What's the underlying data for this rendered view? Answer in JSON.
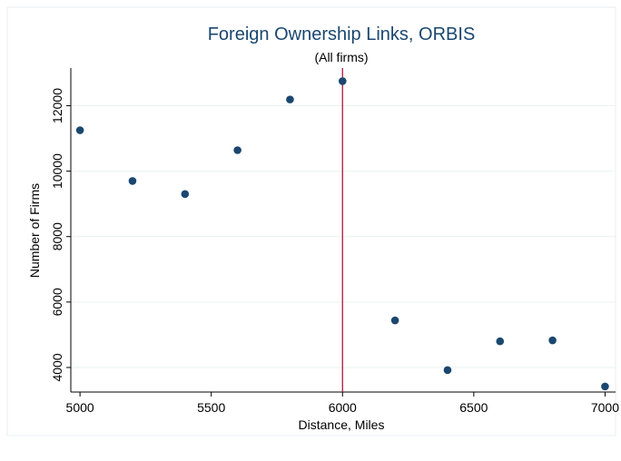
{
  "chart_data": {
    "type": "scatter",
    "title": "Foreign Ownership Links, ORBIS",
    "subtitle": "(All firms)",
    "x_label": "Distance, Miles",
    "y_label": "Number of Firms",
    "x": [
      5000,
      5200,
      5400,
      5600,
      5800,
      6000,
      6200,
      6400,
      6600,
      6800,
      7000
    ],
    "values": [
      11250,
      9700,
      9300,
      10640,
      12190,
      12750,
      5440,
      3920,
      4800,
      4830,
      3420
    ],
    "color": "#1a476f",
    "title_color": "#1a476f",
    "vline": 6000,
    "vline_color": "#b2163a",
    "xlim": [
      4965,
      7040
    ],
    "ylim": [
      3250,
      13150
    ],
    "xticks": [
      5000,
      5500,
      6000,
      6500,
      7000
    ],
    "yticks": [
      4000,
      6000,
      8000,
      10000,
      12000
    ],
    "grid": true
  }
}
